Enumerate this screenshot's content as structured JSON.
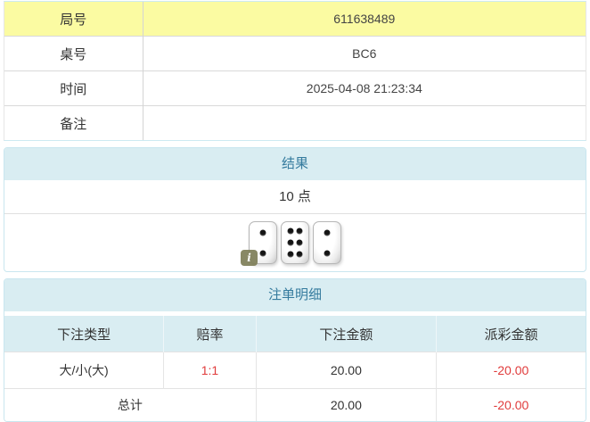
{
  "info_table": {
    "rows": [
      {
        "label": "局号",
        "value": "611638489"
      },
      {
        "label": "桌号",
        "value": "BC6"
      },
      {
        "label": "时间",
        "value": "2025-04-08 21:23:34"
      },
      {
        "label": "备注",
        "value": ""
      }
    ]
  },
  "result_panel": {
    "title": "结果",
    "points": "10 点",
    "dice": [
      2,
      6,
      2
    ],
    "info_badge_glyph": "i"
  },
  "bet_panel": {
    "title": "注单明细",
    "columns": [
      "下注类型",
      "赔率",
      "下注金额",
      "派彩金额"
    ],
    "rows": [
      {
        "bet_type": "大/小(大)",
        "odds": "1:1",
        "bet_amount": "20.00",
        "payout_amount": "-20.00"
      }
    ],
    "total": {
      "label": "总计",
      "bet_amount": "20.00",
      "payout_amount": "-20.00"
    }
  },
  "colors": {
    "highlight_yellow": "#fbfba2",
    "panel_header_bg": "#d9edf2",
    "panel_title_blue": "#357b9e",
    "negative_red": "#e03b3b",
    "panel_border_blue": "#c9e6ef"
  }
}
